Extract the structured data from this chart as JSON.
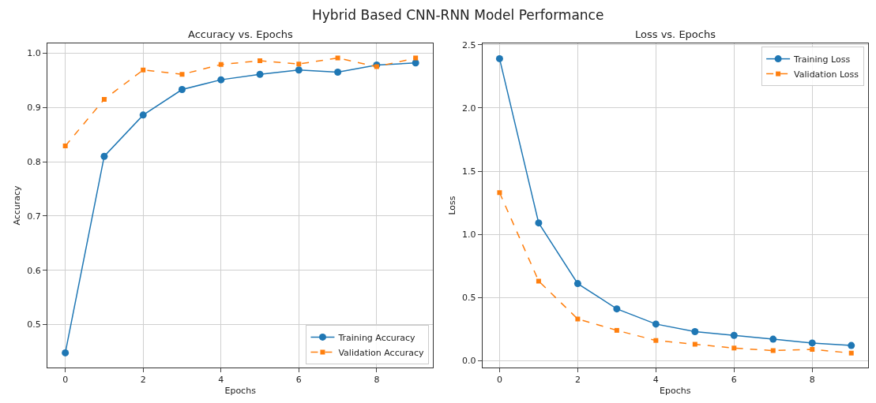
{
  "chart_data": [
    {
      "type": "line",
      "title": "Accuracy vs. Epochs",
      "xlabel": "Epochs",
      "ylabel": "Accuracy",
      "annotations": [
        "Hybrid Based CNN-RNN Model Performance"
      ],
      "x": [
        0,
        1,
        2,
        3,
        4,
        5,
        6,
        7,
        8,
        9
      ],
      "series": [
        {
          "name": "Training Accuracy",
          "color": "#1f77b4",
          "marker": "circle",
          "line_style": "solid",
          "values": [
            0.448,
            0.81,
            0.886,
            0.933,
            0.951,
            0.961,
            0.969,
            0.965,
            0.978,
            0.982
          ]
        },
        {
          "name": "Validation Accuracy",
          "color": "#ff7f0e",
          "marker": "square",
          "line_style": "dashed",
          "values": [
            0.829,
            0.915,
            0.969,
            0.961,
            0.979,
            0.986,
            0.98,
            0.991,
            0.975,
            0.991
          ]
        }
      ],
      "xlim": [
        -0.46,
        9.45
      ],
      "xticks": [
        0,
        2,
        4,
        6,
        8
      ],
      "ylim": [
        0.421,
        1.018
      ],
      "yticks": [
        0.5,
        0.6,
        0.7,
        0.8,
        0.9,
        {
          "value": 1.0,
          "label": "1.0"
        }
      ],
      "grid": true,
      "legend": "bottom right"
    },
    {
      "type": "line",
      "title": "Loss vs. Epochs",
      "xlabel": "Epochs",
      "ylabel": "Loss",
      "x": [
        0,
        1,
        2,
        3,
        4,
        5,
        6,
        7,
        8,
        9
      ],
      "series": [
        {
          "name": "Training Loss",
          "color": "#1f77b4",
          "marker": "circle",
          "line_style": "solid",
          "values": [
            2.39,
            1.09,
            0.61,
            0.41,
            0.29,
            0.23,
            0.2,
            0.17,
            0.14,
            0.12
          ]
        },
        {
          "name": "Validation Loss",
          "color": "#ff7f0e",
          "marker": "square",
          "line_style": "dashed",
          "values": [
            1.33,
            0.63,
            0.33,
            0.24,
            0.16,
            0.13,
            0.1,
            0.08,
            0.09,
            0.06
          ]
        }
      ],
      "xlim": [
        -0.44,
        9.43
      ],
      "xticks": [
        0,
        2,
        4,
        6,
        8
      ],
      "ylim": [
        -0.054,
        2.511
      ],
      "yticks": [
        {
          "value": 0,
          "label": "0.0"
        },
        0.5,
        {
          "value": 1,
          "label": "1.0"
        },
        1.5,
        {
          "value": 2,
          "label": "2.0"
        },
        2.5
      ],
      "grid": true,
      "legend": "top right"
    }
  ]
}
